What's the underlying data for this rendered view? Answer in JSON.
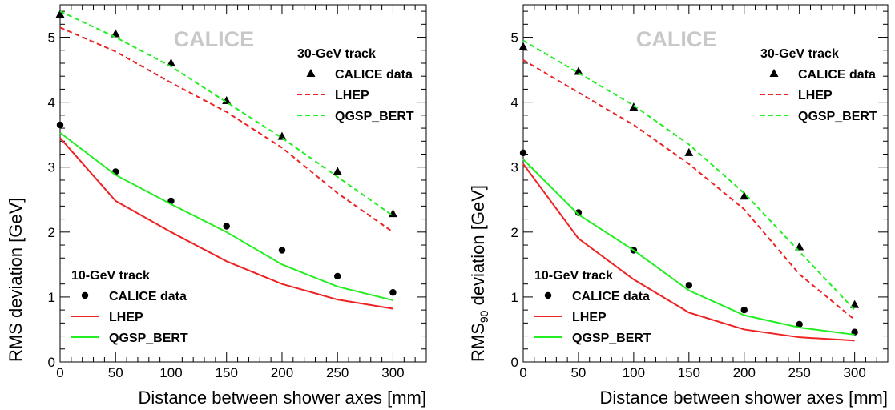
{
  "chart_data": [
    {
      "type": "line",
      "watermark": "CALICE",
      "xlabel": "Distance between shower axes [mm]",
      "ylabel": "RMS deviation [GeV]",
      "ylabel_subscript": "",
      "ylabel_suffix": "",
      "xlim": [
        0,
        330
      ],
      "ylim": [
        0,
        5.5
      ],
      "xticks": [
        0,
        50,
        100,
        150,
        200,
        250,
        300
      ],
      "yticks": [
        0,
        1,
        2,
        3,
        4,
        5
      ],
      "x": [
        0,
        50,
        100,
        150,
        200,
        250,
        300
      ],
      "groups": [
        {
          "title": "30-GeV track",
          "legend_position": "top-right",
          "series": [
            {
              "name": "CALICE data",
              "style": "triangle",
              "color": "#000000",
              "values": [
                5.35,
                5.05,
                4.6,
                4.02,
                3.47,
                2.93,
                2.28
              ]
            },
            {
              "name": "LHEP",
              "style": "dashed",
              "color": "#ee2222",
              "values": [
                5.15,
                4.78,
                4.3,
                3.85,
                3.3,
                2.6,
                2.0
              ]
            },
            {
              "name": "QGSP_BERT",
              "style": "dashed",
              "color": "#22ee22",
              "values": [
                5.4,
                5.0,
                4.55,
                4.0,
                3.45,
                2.85,
                2.25
              ]
            }
          ]
        },
        {
          "title": "10-GeV track",
          "legend_position": "bottom-left",
          "series": [
            {
              "name": "CALICE data",
              "style": "circle",
              "color": "#000000",
              "values": [
                3.65,
                2.93,
                2.48,
                2.09,
                1.72,
                1.32,
                1.07
              ]
            },
            {
              "name": "LHEP",
              "style": "solid",
              "color": "#ee2222",
              "values": [
                3.45,
                2.48,
                2.0,
                1.55,
                1.2,
                0.96,
                0.82
              ]
            },
            {
              "name": "QGSP_BERT",
              "style": "solid",
              "color": "#22ee22",
              "values": [
                3.53,
                2.88,
                2.43,
                2.0,
                1.5,
                1.16,
                0.95
              ]
            }
          ]
        }
      ]
    },
    {
      "type": "line",
      "watermark": "CALICE",
      "xlabel": "Distance between shower axes [mm]",
      "ylabel": "RMS",
      "ylabel_subscript": "90",
      "ylabel_suffix": " deviation [GeV]",
      "xlim": [
        0,
        330
      ],
      "ylim": [
        0,
        5.5
      ],
      "xticks": [
        0,
        50,
        100,
        150,
        200,
        250,
        300
      ],
      "yticks": [
        0,
        1,
        2,
        3,
        4,
        5
      ],
      "x": [
        0,
        50,
        100,
        150,
        200,
        250,
        300
      ],
      "groups": [
        {
          "title": "30-GeV track",
          "legend_position": "top-right",
          "series": [
            {
              "name": "CALICE data",
              "style": "triangle",
              "color": "#000000",
              "values": [
                4.85,
                4.47,
                3.92,
                3.22,
                2.55,
                1.77,
                0.88
              ]
            },
            {
              "name": "LHEP",
              "style": "dashed",
              "color": "#ee2222",
              "values": [
                4.65,
                4.15,
                3.65,
                3.05,
                2.35,
                1.35,
                0.65
              ]
            },
            {
              "name": "QGSP_BERT",
              "style": "dashed",
              "color": "#22ee22",
              "values": [
                4.95,
                4.45,
                3.95,
                3.35,
                2.6,
                1.7,
                0.8
              ]
            }
          ]
        },
        {
          "title": "10-GeV track",
          "legend_position": "bottom-left",
          "series": [
            {
              "name": "CALICE data",
              "style": "circle",
              "color": "#000000",
              "values": [
                3.22,
                2.3,
                1.72,
                1.18,
                0.8,
                0.58,
                0.46
              ]
            },
            {
              "name": "LHEP",
              "style": "solid",
              "color": "#ee2222",
              "values": [
                3.05,
                1.9,
                1.27,
                0.76,
                0.5,
                0.38,
                0.33
              ]
            },
            {
              "name": "QGSP_BERT",
              "style": "solid",
              "color": "#22ee22",
              "values": [
                3.12,
                2.27,
                1.72,
                1.1,
                0.72,
                0.53,
                0.42
              ]
            }
          ]
        }
      ]
    }
  ]
}
